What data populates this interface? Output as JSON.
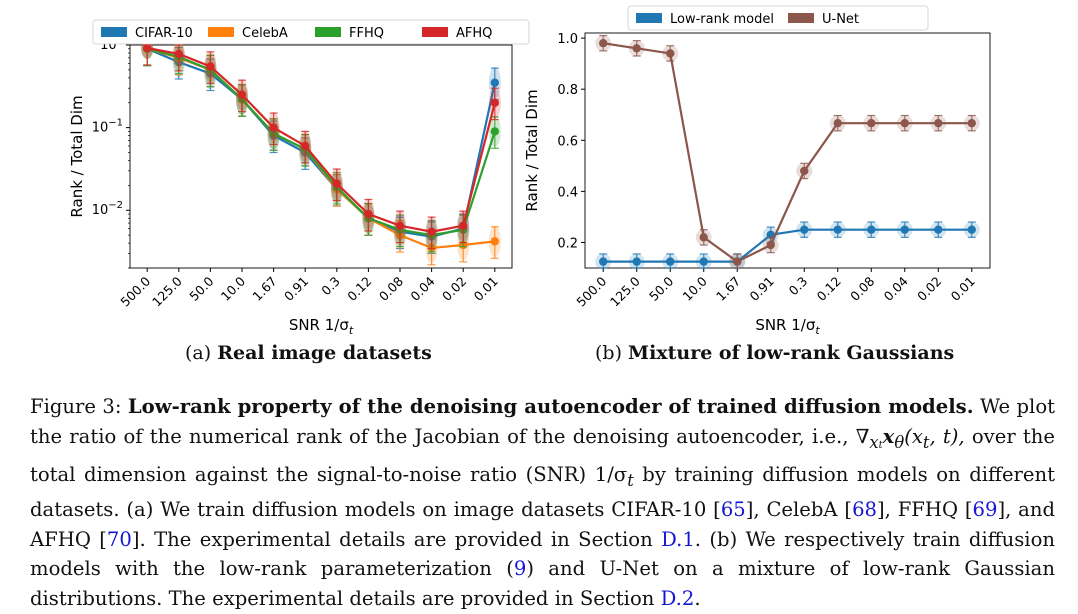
{
  "figure": {
    "chart_data": [
      {
        "type": "line",
        "panel": "a",
        "yscale": "log",
        "ylim": [
          0.002,
          1
        ],
        "yticks": [
          "10^0",
          "10^-1",
          "10^-2"
        ],
        "ylabel": "Rank / Total Dim",
        "xlabel": "SNR 1/σ_t",
        "categories": [
          "500.0",
          "125.0",
          "50.0",
          "10.0",
          "1.67",
          "0.91",
          "0.3",
          "0.12",
          "0.08",
          "0.04",
          "0.02",
          "0.01"
        ],
        "legend_position": "top",
        "series": [
          {
            "name": "CIFAR-10",
            "color": "#1f77b4",
            "values": [
              0.9,
              0.62,
              0.45,
              0.22,
              0.08,
              0.05,
              0.018,
              0.008,
              0.0055,
              0.0048,
              0.006,
              0.35
            ]
          },
          {
            "name": "CelebA",
            "color": "#ff7f0e",
            "values": [
              0.9,
              0.7,
              0.5,
              0.22,
              0.085,
              0.055,
              0.018,
              0.008,
              0.005,
              0.0035,
              0.0038,
              0.0042
            ]
          },
          {
            "name": "FFHQ",
            "color": "#2ca02c",
            "values": [
              0.9,
              0.72,
              0.5,
              0.22,
              0.085,
              0.055,
              0.019,
              0.008,
              0.0058,
              0.005,
              0.0058,
              0.09
            ]
          },
          {
            "name": "AFHQ",
            "color": "#d62728",
            "values": [
              0.92,
              0.78,
              0.55,
              0.25,
              0.1,
              0.06,
              0.021,
              0.009,
              0.0065,
              0.0055,
              0.0065,
              0.2
            ]
          }
        ]
      },
      {
        "type": "line",
        "panel": "b",
        "ylim": [
          0.1,
          1.02
        ],
        "yticks": [
          "0.2",
          "0.4",
          "0.6",
          "0.8",
          "1.0"
        ],
        "ylabel": "Rank / Total Dim",
        "xlabel": "SNR 1/σ_t",
        "categories": [
          "500.0",
          "125.0",
          "50.0",
          "10.0",
          "1.67",
          "0.91",
          "0.3",
          "0.12",
          "0.08",
          "0.04",
          "0.02",
          "0.01"
        ],
        "legend_position": "top",
        "series": [
          {
            "name": "Low-rank model",
            "color": "#1f77b4",
            "values": [
              0.125,
              0.125,
              0.125,
              0.125,
              0.125,
              0.23,
              0.25,
              0.25,
              0.25,
              0.25,
              0.25,
              0.25
            ]
          },
          {
            "name": "U-Net",
            "color": "#8c564b",
            "values": [
              0.98,
              0.96,
              0.94,
              0.22,
              0.125,
              0.19,
              0.48,
              0.667,
              0.667,
              0.667,
              0.667,
              0.667
            ]
          }
        ]
      }
    ],
    "subcaption_a_label": "(a)",
    "subcaption_a_title": "Real image datasets",
    "subcaption_b_label": "(b)",
    "subcaption_b_title": "Mixture of low-rank Gaussians"
  },
  "caption": {
    "label": "Figure 3:",
    "title": "Low-rank property of the denoising autoencoder of trained diffusion models.",
    "text1": "We plot the ratio of the numerical rank of the Jacobian of the denoising autoencoder, i.e., ∇",
    "math_jacobian_sub": "x",
    "math_jacobian_sub2": "t",
    "math_jacobian_rest": "x",
    "math_theta": "θ",
    "math_args": "(x",
    "math_args_sub": "t",
    "math_args_end": ", t),",
    "text2": "over the total dimension against the signal-to-noise ratio (SNR) 1/σ",
    "sigma_sub": "t",
    "text3": "by training diffusion models on different datasets.  (a) We train diffusion models on image datasets CIFAR-10 [",
    "ref65": "65",
    "text4": "], CelebA [",
    "ref68": "68",
    "text5": "], FFHQ [",
    "ref69": "69",
    "text6": "], and AFHQ [",
    "ref70": "70",
    "text7": "].  The experimental details are provided in Section",
    "refD1": "D.1",
    "text8": ".  (b) We respectively train diffusion models with the low-rank parameterization (",
    "ref9": "9",
    "text9": ") and U-Net on a mixture of low-rank Gaussian distributions. The experimental details are provided in Section",
    "refD2": "D.2",
    "text10": "."
  }
}
